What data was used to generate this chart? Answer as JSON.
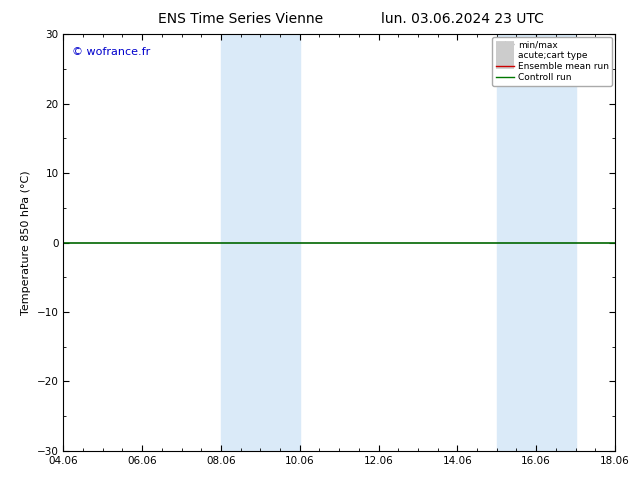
{
  "title_left": "ENS Time Series Vienne",
  "title_right": "lun. 03.06.2024 23 UTC",
  "ylabel": "Temperature 850 hPa (°C)",
  "watermark": "© wofrance.fr",
  "ylim": [
    -30,
    30
  ],
  "yticks": [
    -30,
    -20,
    -10,
    0,
    10,
    20,
    30
  ],
  "xlim_start": 0,
  "xlim_end": 14,
  "xtick_labels": [
    "04.06",
    "06.06",
    "08.06",
    "10.06",
    "12.06",
    "14.06",
    "16.06",
    "18.06"
  ],
  "xtick_positions": [
    0,
    2,
    4,
    6,
    8,
    10,
    12,
    14
  ],
  "shade_bands": [
    {
      "x_start": 4,
      "x_end": 6
    },
    {
      "x_start": 11,
      "x_end": 13
    }
  ],
  "shade_color": "#daeaf8",
  "zero_line_color": "#006600",
  "background_color": "#ffffff",
  "legend_items": [
    {
      "label": "min/max",
      "color": "#999999",
      "lw": 1.0,
      "style": "line_with_caps"
    },
    {
      "label": "acute;cart type",
      "color": "#cccccc",
      "lw": 5,
      "style": "thick"
    },
    {
      "label": "Ensemble mean run",
      "color": "#cc0000",
      "lw": 1.0,
      "style": "line"
    },
    {
      "label": "Controll run",
      "color": "#007700",
      "lw": 1.0,
      "style": "line"
    }
  ],
  "watermark_color": "#0000cc",
  "title_fontsize": 10,
  "tick_fontsize": 7.5,
  "ylabel_fontsize": 8,
  "legend_fontsize": 6.5
}
